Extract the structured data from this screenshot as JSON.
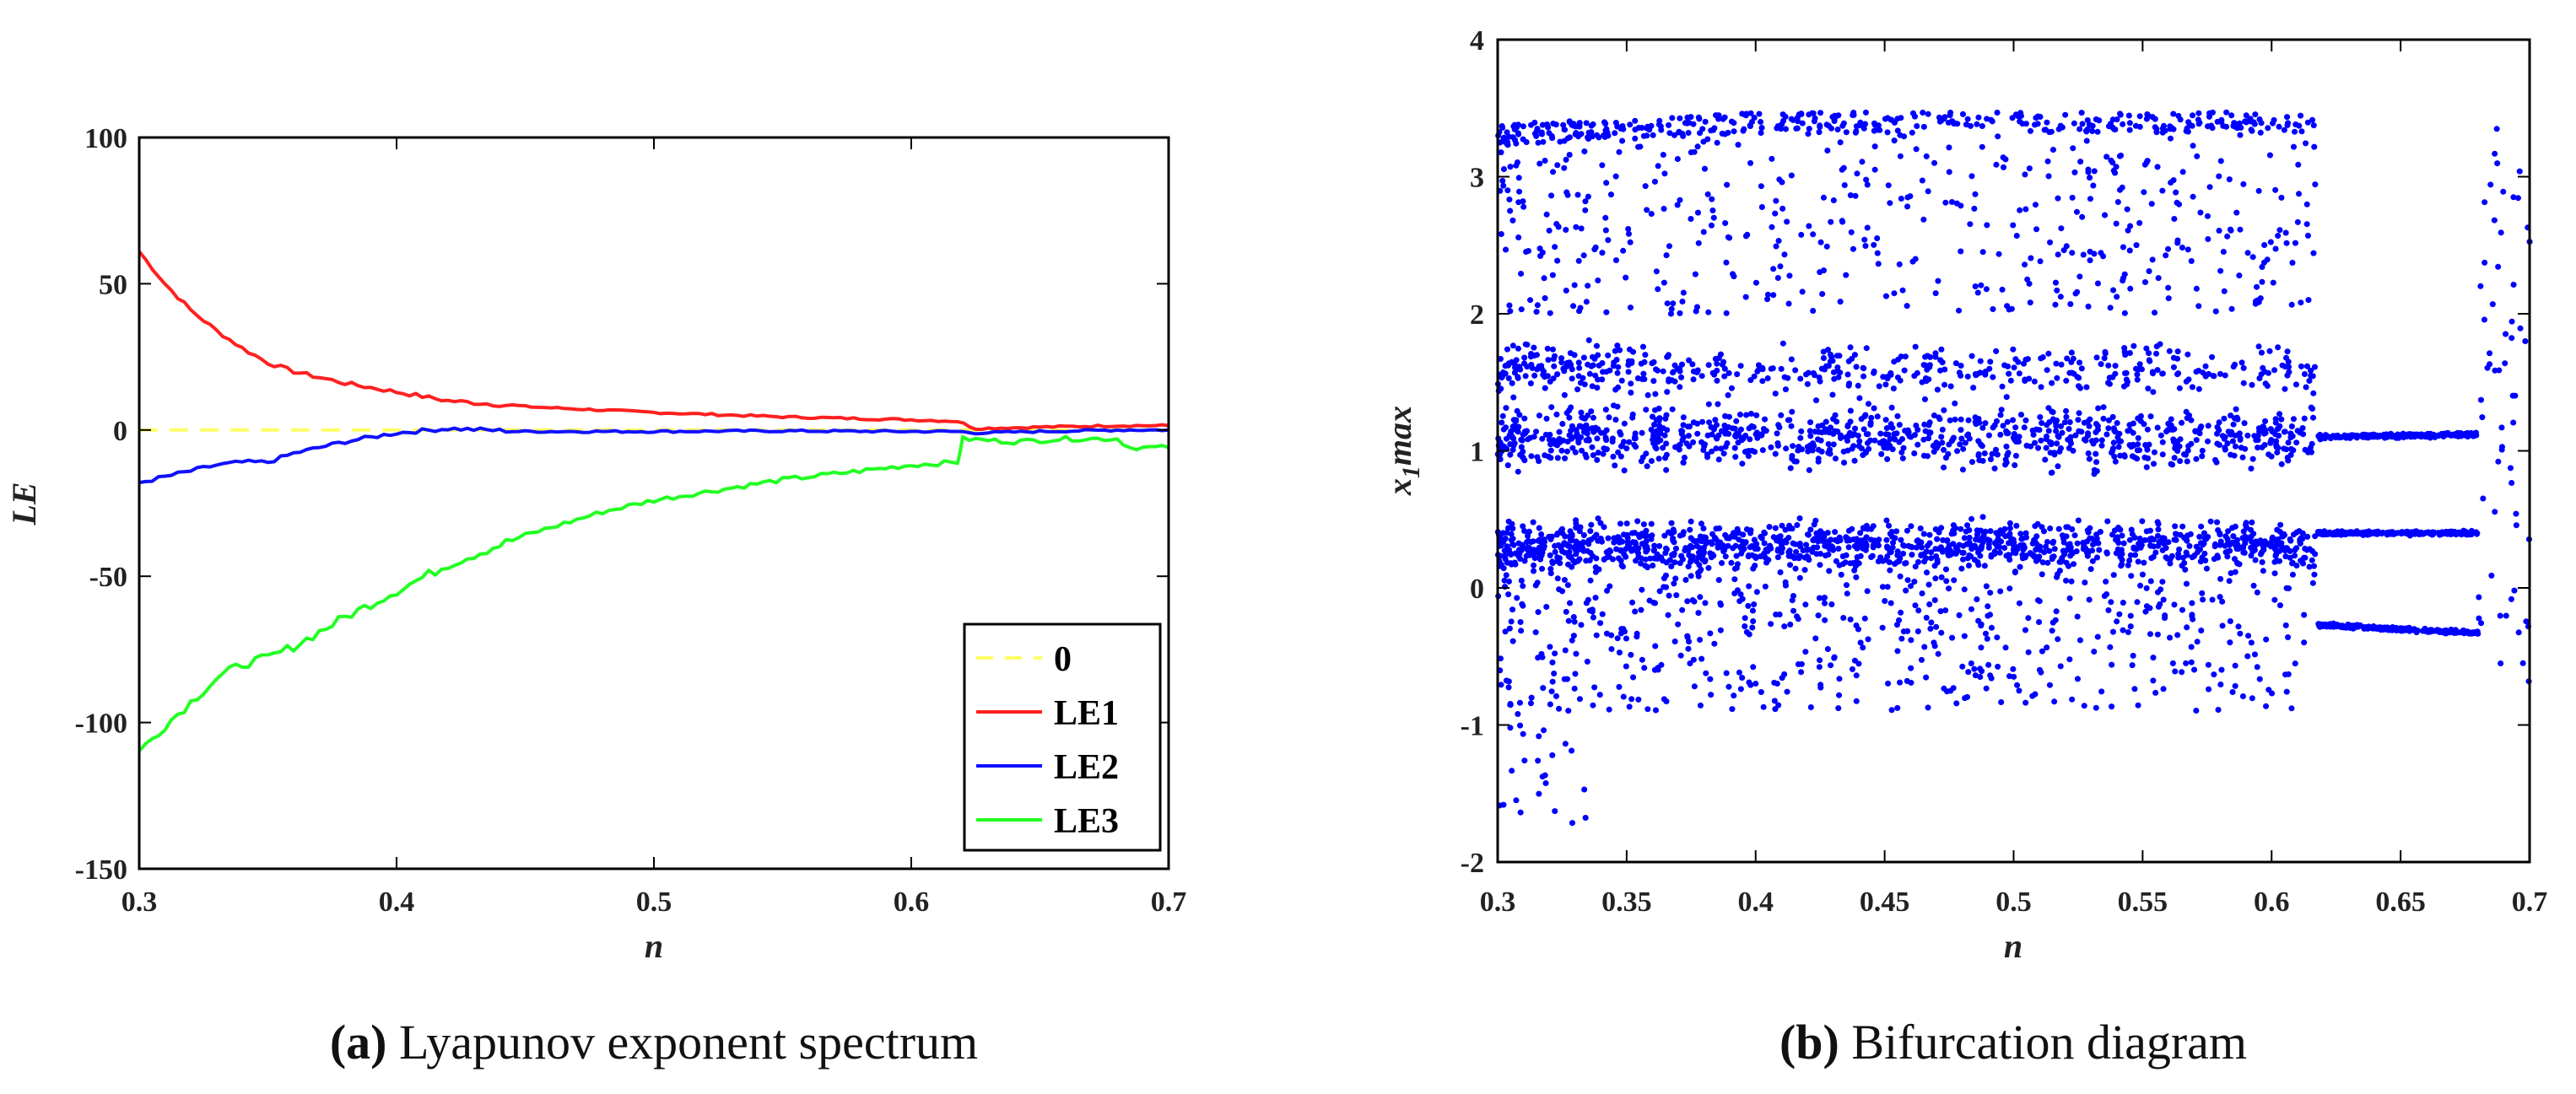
{
  "colors": {
    "zero": "#ffff66",
    "le1": "#ff2020",
    "le2": "#1010ff",
    "le3": "#22ff22",
    "scatter": "#0000ff"
  },
  "chart_data": [
    {
      "type": "line",
      "caption_letter": "(a)",
      "caption_text": " Lyapunov exponent spectrum",
      "xlabel": "n",
      "ylabel": "LE",
      "xlim": [
        0.3,
        0.7
      ],
      "ylim": [
        -150,
        100
      ],
      "xticks": [
        "0.3",
        "0.4",
        "0.5",
        "0.6",
        "0.7"
      ],
      "yticks": [
        "-150",
        "-100",
        "-50",
        "0",
        "50",
        "100"
      ],
      "legend_position": "bottom-right",
      "grid": false,
      "series": [
        {
          "name": "0",
          "style": "dashed",
          "x": [
            0.3,
            0.7
          ],
          "y": [
            0,
            0
          ]
        },
        {
          "name": "LE1",
          "style": "solid",
          "x": [
            0.3,
            0.31,
            0.32,
            0.33,
            0.34,
            0.35,
            0.36,
            0.38,
            0.4,
            0.42,
            0.45,
            0.5,
            0.55,
            0.6,
            0.618,
            0.625,
            0.65,
            0.68,
            0.7
          ],
          "y": [
            61,
            50,
            41,
            34,
            28,
            23,
            20,
            16,
            13,
            10,
            8,
            6,
            4.5,
            3.5,
            3,
            0.5,
            1,
            1.5,
            1.5
          ]
        },
        {
          "name": "LE2",
          "style": "solid",
          "x": [
            0.3,
            0.31,
            0.32,
            0.33,
            0.34,
            0.35,
            0.36,
            0.38,
            0.4,
            0.42,
            0.45,
            0.5,
            0.55,
            0.6,
            0.618,
            0.625,
            0.65,
            0.68,
            0.7
          ],
          "y": [
            -18,
            -16,
            -14,
            -12,
            -11,
            -11,
            -8,
            -4,
            -1,
            0.5,
            -0.5,
            -0.5,
            -0.3,
            -0.5,
            -0.5,
            -1,
            -0.5,
            0,
            0
          ]
        },
        {
          "name": "LE3",
          "style": "solid",
          "x": [
            0.3,
            0.31,
            0.32,
            0.33,
            0.34,
            0.35,
            0.36,
            0.38,
            0.4,
            0.42,
            0.45,
            0.48,
            0.5,
            0.55,
            0.6,
            0.618,
            0.62,
            0.64,
            0.66,
            0.68,
            0.685,
            0.7
          ],
          "y": [
            -110,
            -101,
            -93,
            -85,
            -80,
            -78,
            -74,
            -64,
            -55,
            -46,
            -36,
            -28,
            -24,
            -17,
            -12,
            -11,
            -3,
            -4,
            -3,
            -3,
            -6,
            -6
          ]
        }
      ]
    },
    {
      "type": "scatter",
      "caption_letter": "(b)",
      "caption_text": " Bifurcation diagram",
      "xlabel": "n",
      "ylabel": "x",
      "ylabel_sub": "1",
      "ylabel_suffix": "max",
      "xlim": [
        0.3,
        0.7
      ],
      "ylim": [
        -2,
        4
      ],
      "xticks": [
        "0.3",
        "0.35",
        "0.4",
        "0.45",
        "0.5",
        "0.55",
        "0.6",
        "0.65",
        "0.7"
      ],
      "yticks": [
        "-2",
        "-1",
        "0",
        "1",
        "2",
        "3",
        "4"
      ],
      "grid": false,
      "chaotic_region": {
        "x": [
          0.3,
          0.617
        ],
        "y_band": [
          -0.9,
          3.5
        ]
      },
      "periodic_branches": [
        {
          "x": [
            0.618,
            0.68
          ],
          "y": [
            1.1,
            1.12
          ]
        },
        {
          "x": [
            0.618,
            0.68
          ],
          "y": [
            0.4,
            0.4
          ]
        },
        {
          "x": [
            0.618,
            0.68
          ],
          "y": [
            -0.27,
            -0.33
          ]
        }
      ]
    }
  ]
}
